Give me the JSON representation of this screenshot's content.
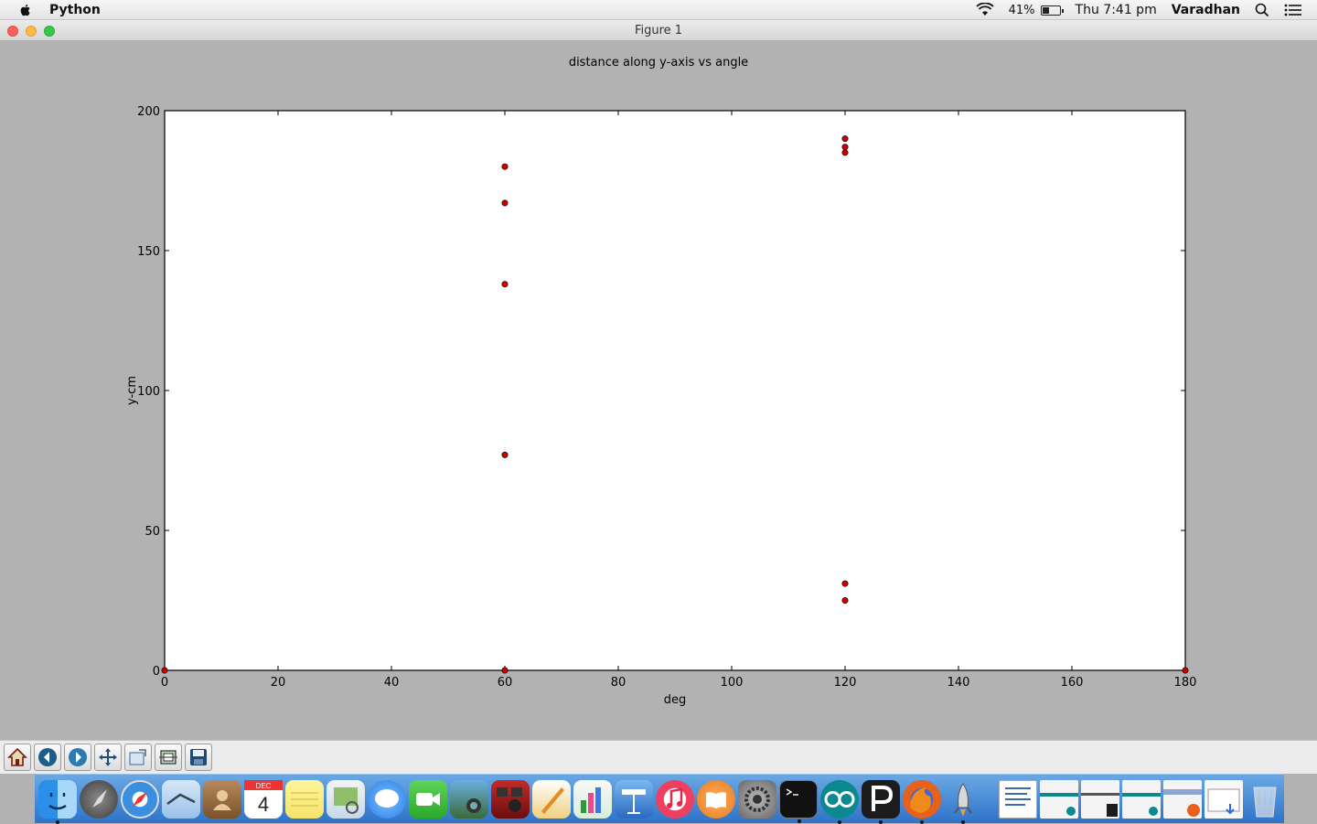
{
  "menubar": {
    "app_name": "Python",
    "battery_percent": "41%",
    "battery_level": 0.41,
    "clock": "Thu 7:41 pm",
    "user": "Varadhan",
    "icons": [
      "apple-icon",
      "wifi-icon",
      "battery-icon",
      "spotlight-search-icon",
      "notification-center-icon"
    ]
  },
  "window": {
    "title": "Figure 1"
  },
  "chart_data": {
    "type": "scatter",
    "title": "distance along y-axis vs angle",
    "xlabel": "deg",
    "ylabel": "y-cm",
    "xlim": [
      0,
      180
    ],
    "ylim": [
      0,
      200
    ],
    "xticks": [
      0,
      20,
      40,
      60,
      80,
      100,
      120,
      140,
      160,
      180
    ],
    "yticks": [
      0,
      50,
      100,
      150,
      200
    ],
    "grid": false,
    "marker_color": "#cc0000",
    "series": [
      {
        "points": [
          {
            "x": 0,
            "y": 0
          },
          {
            "x": 60,
            "y": 0
          },
          {
            "x": 60,
            "y": 77
          },
          {
            "x": 60,
            "y": 138
          },
          {
            "x": 60,
            "y": 167
          },
          {
            "x": 60,
            "y": 180
          },
          {
            "x": 120,
            "y": 25
          },
          {
            "x": 120,
            "y": 31
          },
          {
            "x": 120,
            "y": 185
          },
          {
            "x": 120,
            "y": 187
          },
          {
            "x": 120,
            "y": 190
          },
          {
            "x": 180,
            "y": 0
          }
        ]
      }
    ]
  },
  "toolbar": {
    "buttons": [
      "home-icon",
      "back-icon",
      "forward-icon",
      "pan-icon",
      "zoom-icon",
      "configure-subplots-icon",
      "save-icon"
    ]
  },
  "dock": {
    "apps": [
      {
        "icon": "finder-icon",
        "running": true
      },
      {
        "icon": "launchpad-icon",
        "running": false
      },
      {
        "icon": "safari-icon",
        "running": false
      },
      {
        "icon": "mail-icon",
        "running": false
      },
      {
        "icon": "contacts-icon",
        "running": false
      },
      {
        "icon": "calendar-icon",
        "running": false,
        "month": "DEC",
        "day": "4"
      },
      {
        "icon": "notes-icon",
        "running": false
      },
      {
        "icon": "preview-icon",
        "running": false
      },
      {
        "icon": "messages-icon",
        "running": false
      },
      {
        "icon": "facetime-icon",
        "running": false
      },
      {
        "icon": "iphoto-icon",
        "running": false
      },
      {
        "icon": "photo-booth-icon",
        "running": false
      },
      {
        "icon": "pages-icon",
        "running": false
      },
      {
        "icon": "numbers-icon",
        "running": false
      },
      {
        "icon": "keynote-icon",
        "running": false
      },
      {
        "icon": "itunes-icon",
        "running": false
      },
      {
        "icon": "ibooks-icon",
        "running": false
      },
      {
        "icon": "system-preferences-icon",
        "running": false
      },
      {
        "icon": "terminal-icon",
        "running": true
      },
      {
        "icon": "arduino-icon",
        "running": true
      },
      {
        "icon": "processing-icon",
        "running": true
      },
      {
        "icon": "firefox-icon",
        "running": true
      },
      {
        "icon": "python-rocket-icon",
        "running": true
      }
    ],
    "documents": [
      {
        "icon": "document-icon"
      },
      {
        "icon": "minimized-arduino-window-icon"
      },
      {
        "icon": "minimized-processing-window-icon"
      },
      {
        "icon": "minimized-arduino-window-icon"
      },
      {
        "icon": "minimized-firefox-window-icon"
      },
      {
        "icon": "downloads-stack-icon"
      },
      {
        "icon": "trash-icon"
      }
    ]
  }
}
